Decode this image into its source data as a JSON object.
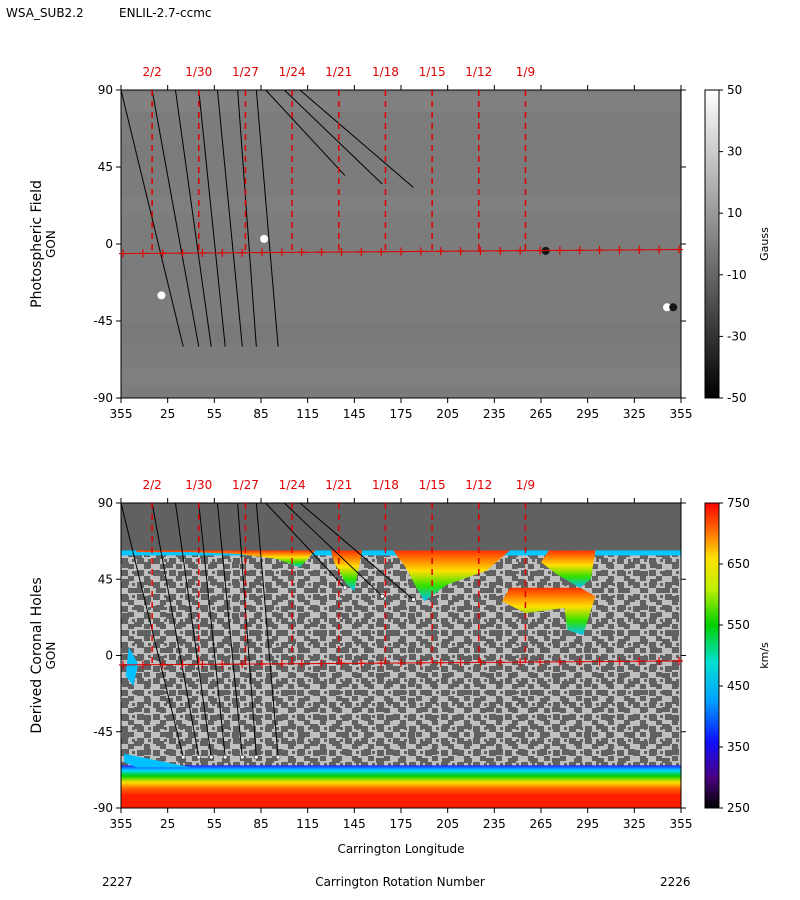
{
  "header": {
    "model": "WSA_SUB2.2",
    "run": "ENLIL-2.7-ccmc"
  },
  "footer": {
    "rotation_left": "2227",
    "rotation_right": "2226",
    "rotation_title": "Carrington Rotation Number"
  },
  "colors": {
    "date_marker": "#e00000",
    "grid_grey": "#8a8a8a",
    "hole_light": "#c0c0c0",
    "hole_dark": "#616161"
  },
  "chart_data": [
    {
      "type": "heatmap",
      "panel": "photospheric",
      "ylabel": "Photospheric Field",
      "ylabel2": "GON",
      "xlabel": "",
      "x_ticks": [
        "355",
        "25",
        "55",
        "85",
        "115",
        "145",
        "175",
        "205",
        "235",
        "265",
        "295",
        "325",
        "355"
      ],
      "y_ticks": [
        90,
        45,
        0,
        -45,
        -90
      ],
      "ylim": [
        -90,
        90
      ],
      "date_labels": [
        "2/2",
        "1/30",
        "1/27",
        "1/24",
        "1/21",
        "1/18",
        "1/15",
        "1/12",
        "1/9"
      ],
      "date_longitudes": [
        15,
        45,
        75,
        105,
        135,
        165,
        195,
        225,
        255
      ],
      "colorbar": {
        "label": "Gauss",
        "ticks": [
          "50",
          "30",
          "10",
          "-10",
          "-30",
          "-50"
        ],
        "range": [
          -50,
          50
        ]
      },
      "spots": [
        {
          "lon": 87,
          "lat": 3,
          "value": 50
        },
        {
          "lon": 21,
          "lat": -30,
          "value": 45
        },
        {
          "lon": 268,
          "lat": -4,
          "value": -40
        },
        {
          "lon": 346,
          "lat": -37,
          "value": 45
        },
        {
          "lon": 350,
          "lat": -37,
          "value": -45
        }
      ]
    },
    {
      "type": "heatmap",
      "panel": "coronal_holes",
      "ylabel": "Derived Coronal Holes",
      "ylabel2": "GON",
      "xlabel": "Carrington Longitude",
      "x_ticks": [
        "355",
        "25",
        "55",
        "85",
        "115",
        "145",
        "175",
        "205",
        "235",
        "265",
        "295",
        "325",
        "355"
      ],
      "y_ticks": [
        90,
        45,
        0,
        -45,
        -90
      ],
      "ylim": [
        -90,
        90
      ],
      "date_labels": [
        "2/2",
        "1/30",
        "1/27",
        "1/24",
        "1/21",
        "1/18",
        "1/15",
        "1/12",
        "1/9"
      ],
      "date_longitudes": [
        15,
        45,
        75,
        105,
        135,
        165,
        195,
        225,
        255
      ],
      "colorbar": {
        "label": "km/s",
        "ticks": [
          "750",
          "650",
          "550",
          "450",
          "350",
          "250"
        ],
        "range": [
          250,
          750
        ]
      },
      "north_hole_edge_lat": 62,
      "south_hole_edge_lat": -66
    }
  ]
}
